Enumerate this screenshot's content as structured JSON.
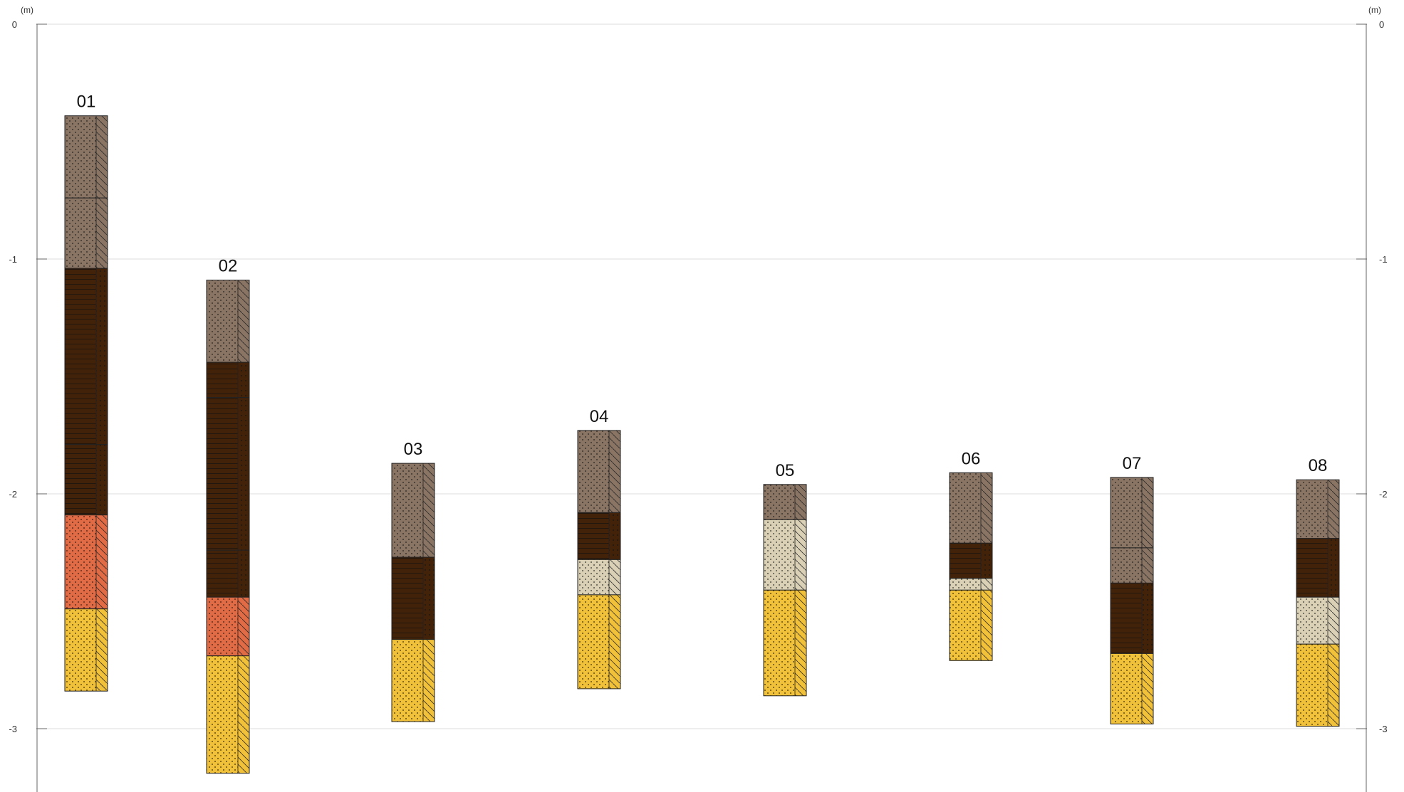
{
  "chart_data": {
    "type": "stratigraphic-column",
    "y_unit": "(m)",
    "ylim": [
      -3.3,
      0
    ],
    "y_ticks": [
      0,
      -1,
      -2,
      -3
    ],
    "y_tick_labels": [
      "0",
      "-1",
      "-2",
      "-3"
    ],
    "grid": true,
    "axes": [
      "left",
      "right"
    ],
    "lithology_colors": {
      "brown-sandy": "#8a7565",
      "dark-peat": "#43220a",
      "orange-clay": "#e06b45",
      "light-sand": "#d9d0b6",
      "yellow-sand": "#f2c13a"
    },
    "columns": [
      {
        "label": "01",
        "layers": [
          {
            "top": -0.39,
            "bottom": -0.74,
            "material": "brown-sandy"
          },
          {
            "top": -0.74,
            "bottom": -1.04,
            "material": "brown-sandy"
          },
          {
            "top": -1.04,
            "bottom": -1.79,
            "material": "dark-peat"
          },
          {
            "top": -1.79,
            "bottom": -2.09,
            "material": "dark-peat"
          },
          {
            "top": -2.09,
            "bottom": -2.49,
            "material": "orange-clay"
          },
          {
            "top": -2.49,
            "bottom": -2.84,
            "material": "yellow-sand"
          }
        ]
      },
      {
        "label": "02",
        "layers": [
          {
            "top": -1.09,
            "bottom": -1.44,
            "material": "brown-sandy"
          },
          {
            "top": -1.44,
            "bottom": -1.59,
            "material": "dark-peat"
          },
          {
            "top": -1.59,
            "bottom": -2.24,
            "material": "dark-peat"
          },
          {
            "top": -2.24,
            "bottom": -2.44,
            "material": "dark-peat"
          },
          {
            "top": -2.44,
            "bottom": -2.69,
            "material": "orange-clay"
          },
          {
            "top": -2.69,
            "bottom": -3.19,
            "material": "yellow-sand"
          }
        ]
      },
      {
        "label": "03",
        "layers": [
          {
            "top": -1.87,
            "bottom": -2.27,
            "material": "brown-sandy"
          },
          {
            "top": -2.27,
            "bottom": -2.62,
            "material": "dark-peat"
          },
          {
            "top": -2.62,
            "bottom": -2.97,
            "material": "yellow-sand"
          }
        ]
      },
      {
        "label": "04",
        "layers": [
          {
            "top": -1.73,
            "bottom": -2.08,
            "material": "brown-sandy"
          },
          {
            "top": -2.08,
            "bottom": -2.28,
            "material": "dark-peat"
          },
          {
            "top": -2.28,
            "bottom": -2.43,
            "material": "light-sand"
          },
          {
            "top": -2.43,
            "bottom": -2.83,
            "material": "yellow-sand"
          }
        ]
      },
      {
        "label": "05",
        "layers": [
          {
            "top": -1.96,
            "bottom": -2.11,
            "material": "brown-sandy"
          },
          {
            "top": -2.11,
            "bottom": -2.41,
            "material": "light-sand"
          },
          {
            "top": -2.41,
            "bottom": -2.86,
            "material": "yellow-sand"
          }
        ]
      },
      {
        "label": "06",
        "layers": [
          {
            "top": -1.91,
            "bottom": -2.21,
            "material": "brown-sandy"
          },
          {
            "top": -2.21,
            "bottom": -2.36,
            "material": "dark-peat"
          },
          {
            "top": -2.36,
            "bottom": -2.41,
            "material": "light-sand"
          },
          {
            "top": -2.41,
            "bottom": -2.71,
            "material": "yellow-sand"
          }
        ]
      },
      {
        "label": "07",
        "layers": [
          {
            "top": -1.93,
            "bottom": -2.23,
            "material": "brown-sandy"
          },
          {
            "top": -2.23,
            "bottom": -2.38,
            "material": "brown-sandy"
          },
          {
            "top": -2.38,
            "bottom": -2.68,
            "material": "dark-peat"
          },
          {
            "top": -2.68,
            "bottom": -2.98,
            "material": "yellow-sand"
          }
        ]
      },
      {
        "label": "08",
        "layers": [
          {
            "top": -1.94,
            "bottom": -2.19,
            "material": "brown-sandy"
          },
          {
            "top": -2.19,
            "bottom": -2.44,
            "material": "dark-peat"
          },
          {
            "top": -2.44,
            "bottom": -2.64,
            "material": "light-sand"
          },
          {
            "top": -2.64,
            "bottom": -2.99,
            "material": "yellow-sand"
          }
        ]
      }
    ]
  }
}
